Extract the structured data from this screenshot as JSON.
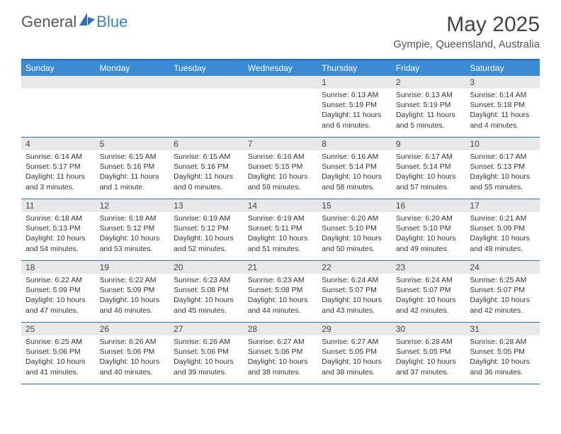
{
  "brand": {
    "general": "General",
    "blue": "Blue"
  },
  "header": {
    "month_title": "May 2025",
    "location": "Gympie, Queensland, Australia"
  },
  "colors": {
    "header_bg": "#3b8bd4",
    "border": "#2b72b8",
    "daynum_bg": "#e6e8ea",
    "text": "#333333"
  },
  "day_names": [
    "Sunday",
    "Monday",
    "Tuesday",
    "Wednesday",
    "Thursday",
    "Friday",
    "Saturday"
  ],
  "weeks": [
    [
      {
        "day": "",
        "sunrise": "",
        "sunset": "",
        "daylight": ""
      },
      {
        "day": "",
        "sunrise": "",
        "sunset": "",
        "daylight": ""
      },
      {
        "day": "",
        "sunrise": "",
        "sunset": "",
        "daylight": ""
      },
      {
        "day": "",
        "sunrise": "",
        "sunset": "",
        "daylight": ""
      },
      {
        "day": "1",
        "sunrise": "Sunrise: 6:13 AM",
        "sunset": "Sunset: 5:19 PM",
        "daylight": "Daylight: 11 hours and 6 minutes."
      },
      {
        "day": "2",
        "sunrise": "Sunrise: 6:13 AM",
        "sunset": "Sunset: 5:19 PM",
        "daylight": "Daylight: 11 hours and 5 minutes."
      },
      {
        "day": "3",
        "sunrise": "Sunrise: 6:14 AM",
        "sunset": "Sunset: 5:18 PM",
        "daylight": "Daylight: 11 hours and 4 minutes."
      }
    ],
    [
      {
        "day": "4",
        "sunrise": "Sunrise: 6:14 AM",
        "sunset": "Sunset: 5:17 PM",
        "daylight": "Daylight: 11 hours and 3 minutes."
      },
      {
        "day": "5",
        "sunrise": "Sunrise: 6:15 AM",
        "sunset": "Sunset: 5:16 PM",
        "daylight": "Daylight: 11 hours and 1 minute."
      },
      {
        "day": "6",
        "sunrise": "Sunrise: 6:15 AM",
        "sunset": "Sunset: 5:16 PM",
        "daylight": "Daylight: 11 hours and 0 minutes."
      },
      {
        "day": "7",
        "sunrise": "Sunrise: 6:16 AM",
        "sunset": "Sunset: 5:15 PM",
        "daylight": "Daylight: 10 hours and 59 minutes."
      },
      {
        "day": "8",
        "sunrise": "Sunrise: 6:16 AM",
        "sunset": "Sunset: 5:14 PM",
        "daylight": "Daylight: 10 hours and 58 minutes."
      },
      {
        "day": "9",
        "sunrise": "Sunrise: 6:17 AM",
        "sunset": "Sunset: 5:14 PM",
        "daylight": "Daylight: 10 hours and 57 minutes."
      },
      {
        "day": "10",
        "sunrise": "Sunrise: 6:17 AM",
        "sunset": "Sunset: 5:13 PM",
        "daylight": "Daylight: 10 hours and 55 minutes."
      }
    ],
    [
      {
        "day": "11",
        "sunrise": "Sunrise: 6:18 AM",
        "sunset": "Sunset: 5:13 PM",
        "daylight": "Daylight: 10 hours and 54 minutes."
      },
      {
        "day": "12",
        "sunrise": "Sunrise: 6:18 AM",
        "sunset": "Sunset: 5:12 PM",
        "daylight": "Daylight: 10 hours and 53 minutes."
      },
      {
        "day": "13",
        "sunrise": "Sunrise: 6:19 AM",
        "sunset": "Sunset: 5:12 PM",
        "daylight": "Daylight: 10 hours and 52 minutes."
      },
      {
        "day": "14",
        "sunrise": "Sunrise: 6:19 AM",
        "sunset": "Sunset: 5:11 PM",
        "daylight": "Daylight: 10 hours and 51 minutes."
      },
      {
        "day": "15",
        "sunrise": "Sunrise: 6:20 AM",
        "sunset": "Sunset: 5:10 PM",
        "daylight": "Daylight: 10 hours and 50 minutes."
      },
      {
        "day": "16",
        "sunrise": "Sunrise: 6:20 AM",
        "sunset": "Sunset: 5:10 PM",
        "daylight": "Daylight: 10 hours and 49 minutes."
      },
      {
        "day": "17",
        "sunrise": "Sunrise: 6:21 AM",
        "sunset": "Sunset: 5:09 PM",
        "daylight": "Daylight: 10 hours and 48 minutes."
      }
    ],
    [
      {
        "day": "18",
        "sunrise": "Sunrise: 6:22 AM",
        "sunset": "Sunset: 5:09 PM",
        "daylight": "Daylight: 10 hours and 47 minutes."
      },
      {
        "day": "19",
        "sunrise": "Sunrise: 6:22 AM",
        "sunset": "Sunset: 5:09 PM",
        "daylight": "Daylight: 10 hours and 46 minutes."
      },
      {
        "day": "20",
        "sunrise": "Sunrise: 6:23 AM",
        "sunset": "Sunset: 5:08 PM",
        "daylight": "Daylight: 10 hours and 45 minutes."
      },
      {
        "day": "21",
        "sunrise": "Sunrise: 6:23 AM",
        "sunset": "Sunset: 5:08 PM",
        "daylight": "Daylight: 10 hours and 44 minutes."
      },
      {
        "day": "22",
        "sunrise": "Sunrise: 6:24 AM",
        "sunset": "Sunset: 5:07 PM",
        "daylight": "Daylight: 10 hours and 43 minutes."
      },
      {
        "day": "23",
        "sunrise": "Sunrise: 6:24 AM",
        "sunset": "Sunset: 5:07 PM",
        "daylight": "Daylight: 10 hours and 42 minutes."
      },
      {
        "day": "24",
        "sunrise": "Sunrise: 6:25 AM",
        "sunset": "Sunset: 5:07 PM",
        "daylight": "Daylight: 10 hours and 42 minutes."
      }
    ],
    [
      {
        "day": "25",
        "sunrise": "Sunrise: 6:25 AM",
        "sunset": "Sunset: 5:06 PM",
        "daylight": "Daylight: 10 hours and 41 minutes."
      },
      {
        "day": "26",
        "sunrise": "Sunrise: 6:26 AM",
        "sunset": "Sunset: 5:06 PM",
        "daylight": "Daylight: 10 hours and 40 minutes."
      },
      {
        "day": "27",
        "sunrise": "Sunrise: 6:26 AM",
        "sunset": "Sunset: 5:06 PM",
        "daylight": "Daylight: 10 hours and 39 minutes."
      },
      {
        "day": "28",
        "sunrise": "Sunrise: 6:27 AM",
        "sunset": "Sunset: 5:06 PM",
        "daylight": "Daylight: 10 hours and 38 minutes."
      },
      {
        "day": "29",
        "sunrise": "Sunrise: 6:27 AM",
        "sunset": "Sunset: 5:05 PM",
        "daylight": "Daylight: 10 hours and 38 minutes."
      },
      {
        "day": "30",
        "sunrise": "Sunrise: 6:28 AM",
        "sunset": "Sunset: 5:05 PM",
        "daylight": "Daylight: 10 hours and 37 minutes."
      },
      {
        "day": "31",
        "sunrise": "Sunrise: 6:28 AM",
        "sunset": "Sunset: 5:05 PM",
        "daylight": "Daylight: 10 hours and 36 minutes."
      }
    ]
  ]
}
